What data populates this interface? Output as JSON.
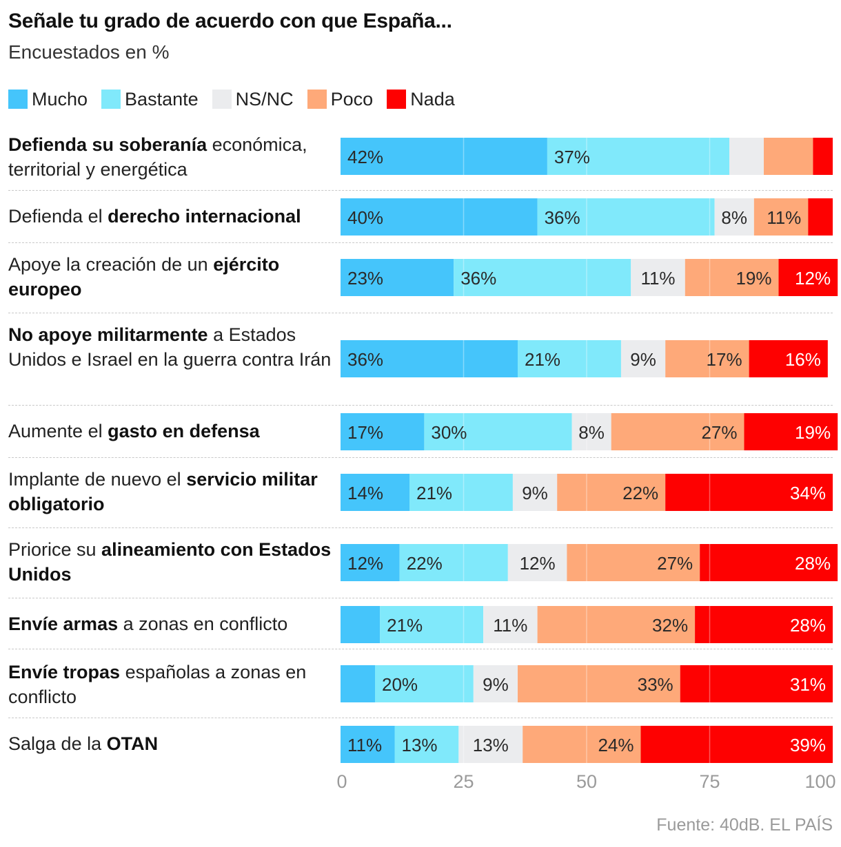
{
  "title": "Señale tu grado de acuerdo con que España...",
  "subtitle": "Encuestados en %",
  "source": "Fuente: 40dB. EL PAÍS",
  "chart_data": {
    "type": "bar",
    "orientation": "horizontal",
    "stacked": true,
    "xlim": [
      0,
      100
    ],
    "xticks": [
      "0",
      "25",
      "50",
      "75",
      "100"
    ],
    "legend_position": "top-left",
    "series": [
      {
        "name": "Mucho",
        "color": "#45c5fb"
      },
      {
        "name": "Bastante",
        "color": "#80e9fb"
      },
      {
        "name": "NS/NC",
        "color": "#ebecee"
      },
      {
        "name": "Poco",
        "color": "#fea979"
      },
      {
        "name": "Nada",
        "color": "#fe0101"
      }
    ],
    "rows": [
      {
        "label_parts": [
          {
            "text": "Defienda su soberanía",
            "bold": true
          },
          {
            "text": " económica, territorial y energética",
            "bold": false
          }
        ],
        "values": [
          42,
          37,
          7,
          10,
          4
        ],
        "labels": [
          "42%",
          "37%",
          "",
          "",
          ""
        ]
      },
      {
        "label_parts": [
          {
            "text": "Defienda el ",
            "bold": false
          },
          {
            "text": "derecho internacional",
            "bold": true
          }
        ],
        "values": [
          40,
          36,
          8,
          11,
          5
        ],
        "labels": [
          "40%",
          "36%",
          "8%",
          "11%",
          ""
        ]
      },
      {
        "label_parts": [
          {
            "text": "Apoye la creación de un ",
            "bold": false
          },
          {
            "text": "ejército europeo",
            "bold": true
          }
        ],
        "values": [
          23,
          36,
          11,
          19,
          12
        ],
        "labels": [
          "23%",
          "36%",
          "11%",
          "19%",
          "12%"
        ]
      },
      {
        "label_parts": [
          {
            "text": "No apoye militarmente",
            "bold": true
          },
          {
            "text": " a Estados Unidos e Israel en la guerra contra Irán",
            "bold": false
          }
        ],
        "values": [
          36,
          21,
          9,
          17,
          16
        ],
        "labels": [
          "36%",
          "21%",
          "9%",
          "17%",
          "16%"
        ]
      },
      {
        "label_parts": [
          {
            "text": "Aumente el ",
            "bold": false
          },
          {
            "text": "gasto en defensa",
            "bold": true
          }
        ],
        "values": [
          17,
          30,
          8,
          27,
          19
        ],
        "labels": [
          "17%",
          "30%",
          "8%",
          "27%",
          "19%"
        ]
      },
      {
        "label_parts": [
          {
            "text": "Implante de nuevo el ",
            "bold": false
          },
          {
            "text": "servicio militar obligatorio",
            "bold": true
          }
        ],
        "values": [
          14,
          21,
          9,
          22,
          34
        ],
        "labels": [
          "14%",
          "21%",
          "9%",
          "22%",
          "34%"
        ]
      },
      {
        "label_parts": [
          {
            "text": "Priorice su ",
            "bold": false
          },
          {
            "text": "alineamiento con Estados Unidos",
            "bold": true
          }
        ],
        "values": [
          12,
          22,
          12,
          27,
          28
        ],
        "labels": [
          "12%",
          "22%",
          "12%",
          "27%",
          "28%"
        ]
      },
      {
        "label_parts": [
          {
            "text": "Envíe armas",
            "bold": true
          },
          {
            "text": " a zonas en conflicto",
            "bold": false
          }
        ],
        "values": [
          8,
          21,
          11,
          32,
          28
        ],
        "labels": [
          "",
          "21%",
          "11%",
          "32%",
          "28%"
        ]
      },
      {
        "label_parts": [
          {
            "text": "Envíe tropas",
            "bold": true
          },
          {
            "text": " españolas a zonas en conflicto",
            "bold": false
          }
        ],
        "values": [
          7,
          20,
          9,
          33,
          31
        ],
        "labels": [
          "",
          "20%",
          "9%",
          "33%",
          "31%"
        ]
      },
      {
        "label_parts": [
          {
            "text": "Salga de la ",
            "bold": false
          },
          {
            "text": "OTAN",
            "bold": true
          }
        ],
        "values": [
          11,
          13,
          13,
          24,
          39
        ],
        "labels": [
          "11%",
          "13%",
          "13%",
          "24%",
          "39%"
        ]
      }
    ]
  }
}
